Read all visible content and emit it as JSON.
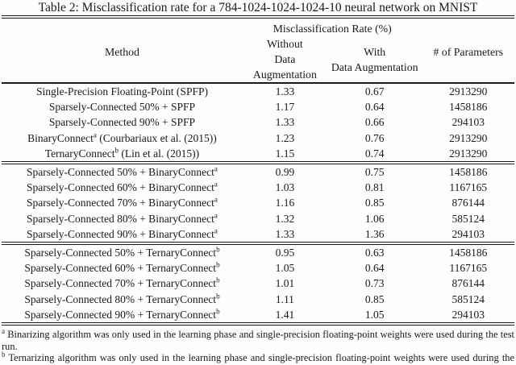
{
  "caption": "Table 2: Misclassification rate for a 784-1024-1024-1024-10 neural network on MNIST",
  "table": {
    "header": {
      "method": "Method",
      "group": "Misclassification Rate (%)",
      "without_line1": "Without",
      "without_line2": "Data Augmentation",
      "with_line1": "With",
      "with_line2": "Data Augmentation",
      "params": "# of Parameters"
    },
    "sections": [
      {
        "rows": [
          {
            "method": "Single-Precision Floating-Point (SPFP)",
            "sup": "",
            "post": "",
            "without": "1.33",
            "with_aug": "0.67",
            "params": "2913290"
          },
          {
            "method": "Sparsely-Connected 50% + SPFP",
            "sup": "",
            "post": "",
            "without": "1.17",
            "with_aug": "0.64",
            "params": "1458186"
          },
          {
            "method": "Sparsely-Connected 90% + SPFP",
            "sup": "",
            "post": "",
            "without": "1.33",
            "with_aug": "0.66",
            "params": "294103"
          },
          {
            "method": "BinaryConnect",
            "sup": "a",
            "post": " (Courbariaux et al. (2015))",
            "without": "1.23",
            "with_aug": "0.76",
            "params": "2913290"
          },
          {
            "method": "TernaryConnect",
            "sup": "b",
            "post": " (Lin et al. (2015))",
            "without": "1.15",
            "with_aug": "0.74",
            "params": "2913290"
          }
        ]
      },
      {
        "rows": [
          {
            "method": "Sparsely-Connected 50% + BinaryConnect",
            "sup": "a",
            "post": "",
            "without": "0.99",
            "with_aug": "0.75",
            "params": "1458186"
          },
          {
            "method": "Sparsely-Connected 60% + BinaryConnect",
            "sup": "a",
            "post": "",
            "without": "1.03",
            "with_aug": "0.81",
            "params": "1167165"
          },
          {
            "method": "Sparsely-Connected 70% + BinaryConnect",
            "sup": "a",
            "post": "",
            "without": "1.16",
            "with_aug": "0.85",
            "params": "876144"
          },
          {
            "method": "Sparsely-Connected 80% + BinaryConnect",
            "sup": "a",
            "post": "",
            "without": "1.32",
            "with_aug": "1.06",
            "params": "585124"
          },
          {
            "method": "Sparsely-Connected 90% + BinaryConnect",
            "sup": "a",
            "post": "",
            "without": "1.33",
            "with_aug": "1.36",
            "params": "294103"
          }
        ]
      },
      {
        "rows": [
          {
            "method": "Sparsely-Connected 50% + TernaryConnect",
            "sup": "b",
            "post": "",
            "without": "0.95",
            "with_aug": "0.63",
            "params": "1458186"
          },
          {
            "method": "Sparsely-Connected 60% + TernaryConnect",
            "sup": "b",
            "post": "",
            "without": "1.05",
            "with_aug": "0.64",
            "params": "1167165"
          },
          {
            "method": "Sparsely-Connected 70% + TernaryConnect",
            "sup": "b",
            "post": "",
            "without": "1.01",
            "with_aug": "0.73",
            "params": "876144"
          },
          {
            "method": "Sparsely-Connected 80% + TernaryConnect",
            "sup": "b",
            "post": "",
            "without": "1.11",
            "with_aug": "0.85",
            "params": "585124"
          },
          {
            "method": "Sparsely-Connected 90% + TernaryConnect",
            "sup": "b",
            "post": "",
            "without": "1.41",
            "with_aug": "1.05",
            "params": "294103"
          }
        ]
      }
    ],
    "footnotes": [
      {
        "marker": "a",
        "text": "Binarizing algorithm was only used in the learning phase and single-precision floating-point weights were used during the test run."
      },
      {
        "marker": "b",
        "text": "Ternarizing algorithm was only used in the learning phase and single-precision floating-point weights were used during the test run."
      }
    ]
  }
}
